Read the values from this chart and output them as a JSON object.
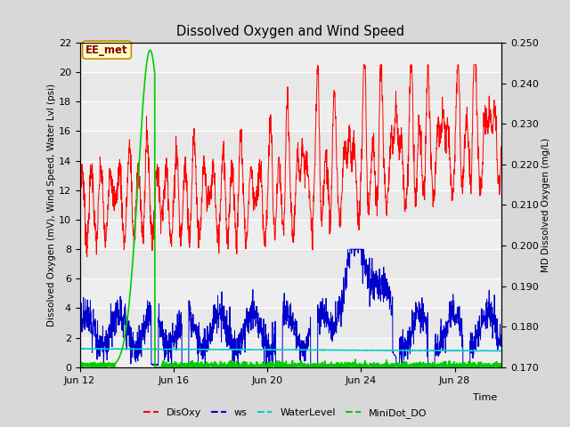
{
  "title": "Dissolved Oxygen and Wind Speed",
  "xlabel": "Time",
  "ylabel_left": "Dissolved Oxygen (mV), Wind Speed, Water Lvl (psi)",
  "ylabel_right": "MD Dissolved Oxygen (mg/L)",
  "ylim_left": [
    0,
    22
  ],
  "ylim_right": [
    0.17,
    0.25
  ],
  "yticks_left": [
    0,
    2,
    4,
    6,
    8,
    10,
    12,
    14,
    16,
    18,
    20,
    22
  ],
  "yticks_right": [
    0.17,
    0.18,
    0.19,
    0.2,
    0.21,
    0.22,
    0.23,
    0.24,
    0.25
  ],
  "xtick_positions": [
    0,
    4,
    8,
    12,
    16
  ],
  "xtick_labels": [
    "Jun 12",
    "Jun 16",
    "Jun 20",
    "Jun 24",
    "Jun 28"
  ],
  "xlim": [
    0,
    18
  ],
  "annotation_text": "EE_met",
  "bg_color": "#d8d8d8",
  "plot_bg_color": "#e8e8e8",
  "stripe_color": "#f2f2f2",
  "colors": {
    "DisOxy": "#ff0000",
    "ws": "#0000cc",
    "WaterLevel": "#00cccc",
    "MiniDot_DO": "#00cc00"
  },
  "legend_labels": [
    "DisOxy",
    "ws",
    "WaterLevel",
    "MiniDot_DO"
  ]
}
